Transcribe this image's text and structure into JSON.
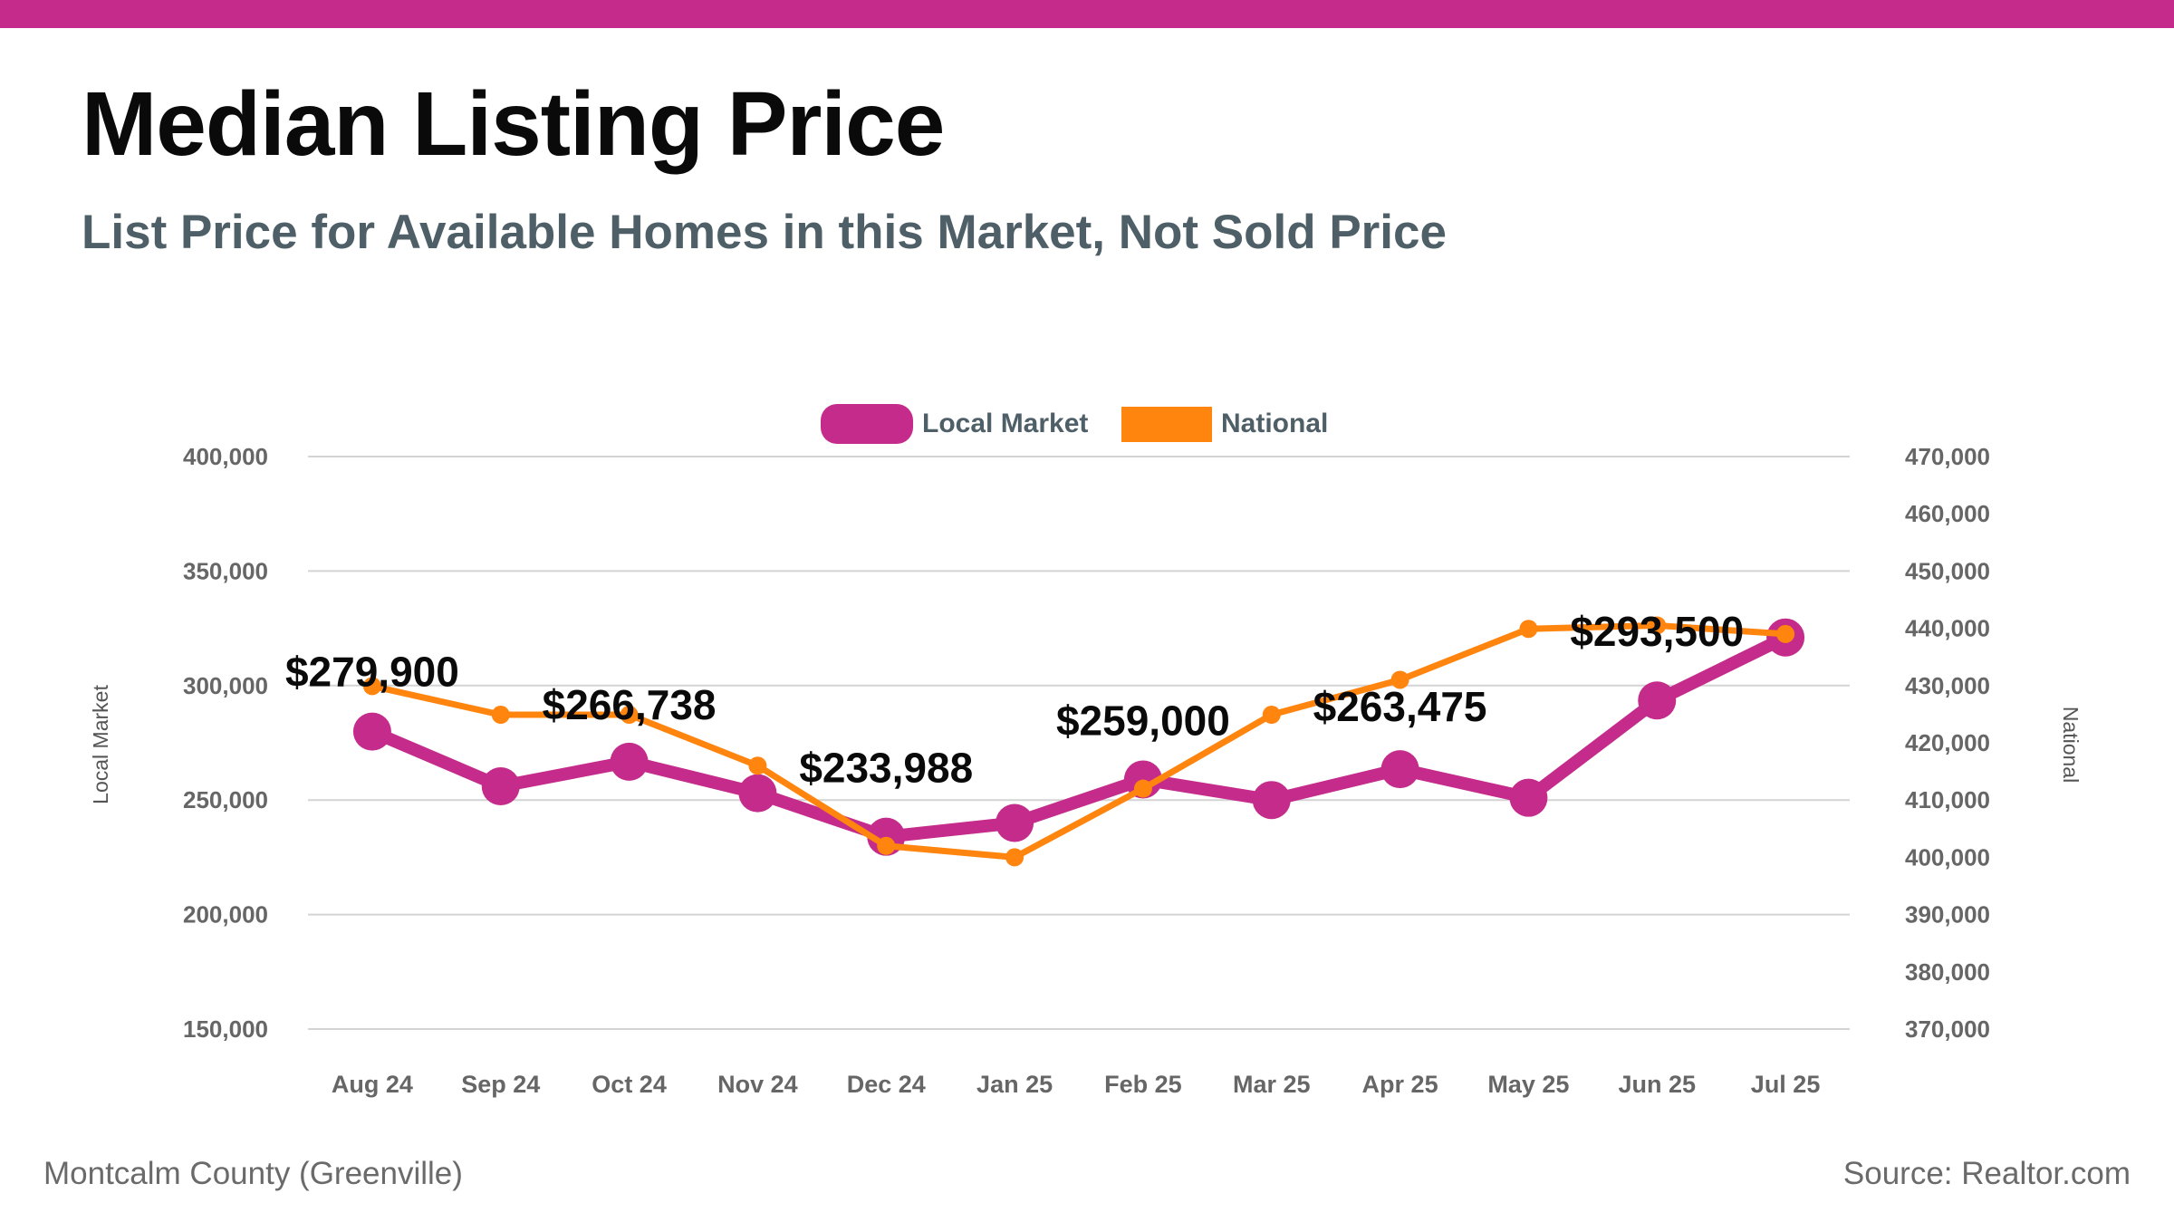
{
  "page": {
    "title": "Median Listing Price",
    "subtitle": "List Price for Available Homes in this Market, Not Sold Price",
    "footer_left": "Montcalm County (Greenville)",
    "footer_right": "Source: Realtor.com",
    "accent_color": "#c42b8a"
  },
  "chart_data": {
    "type": "line",
    "categories": [
      "Aug 24",
      "Sep 24",
      "Oct 24",
      "Nov 24",
      "Dec 24",
      "Jan 25",
      "Feb 25",
      "Mar 25",
      "Apr 25",
      "May 25",
      "Jun 25",
      "Jul 25"
    ],
    "series": [
      {
        "name": "Local Market",
        "axis": "left",
        "color": "#c42b8a",
        "values": [
          279900,
          256000,
          266738,
          253000,
          233988,
          240000,
          259000,
          250000,
          263475,
          251000,
          293500,
          321000
        ]
      },
      {
        "name": "National",
        "axis": "right",
        "color": "#ff850f",
        "values": [
          429900,
          424900,
          424900,
          416000,
          402000,
          400000,
          412000,
          424900,
          431000,
          439900,
          440500,
          439000
        ]
      }
    ],
    "data_labels": [
      {
        "index": 0,
        "text": "$279,900"
      },
      {
        "index": 2,
        "text": "$266,738"
      },
      {
        "index": 4,
        "text": "$233,988"
      },
      {
        "index": 6,
        "text": "$259,000"
      },
      {
        "index": 8,
        "text": "$263,475"
      },
      {
        "index": 10,
        "text": "$293,500"
      }
    ],
    "ylabel": "Local Market",
    "y2label": "National",
    "ylim": [
      150000,
      400000
    ],
    "y2lim": [
      370000,
      470000
    ],
    "yticks": [
      "150,000",
      "200,000",
      "250,000",
      "300,000",
      "350,000",
      "400,000"
    ],
    "y2ticks": [
      "370,000",
      "380,000",
      "390,000",
      "400,000",
      "410,000",
      "420,000",
      "430,000",
      "440,000",
      "450,000",
      "460,000",
      "470,000"
    ],
    "grid": true,
    "legend": "top-center"
  }
}
